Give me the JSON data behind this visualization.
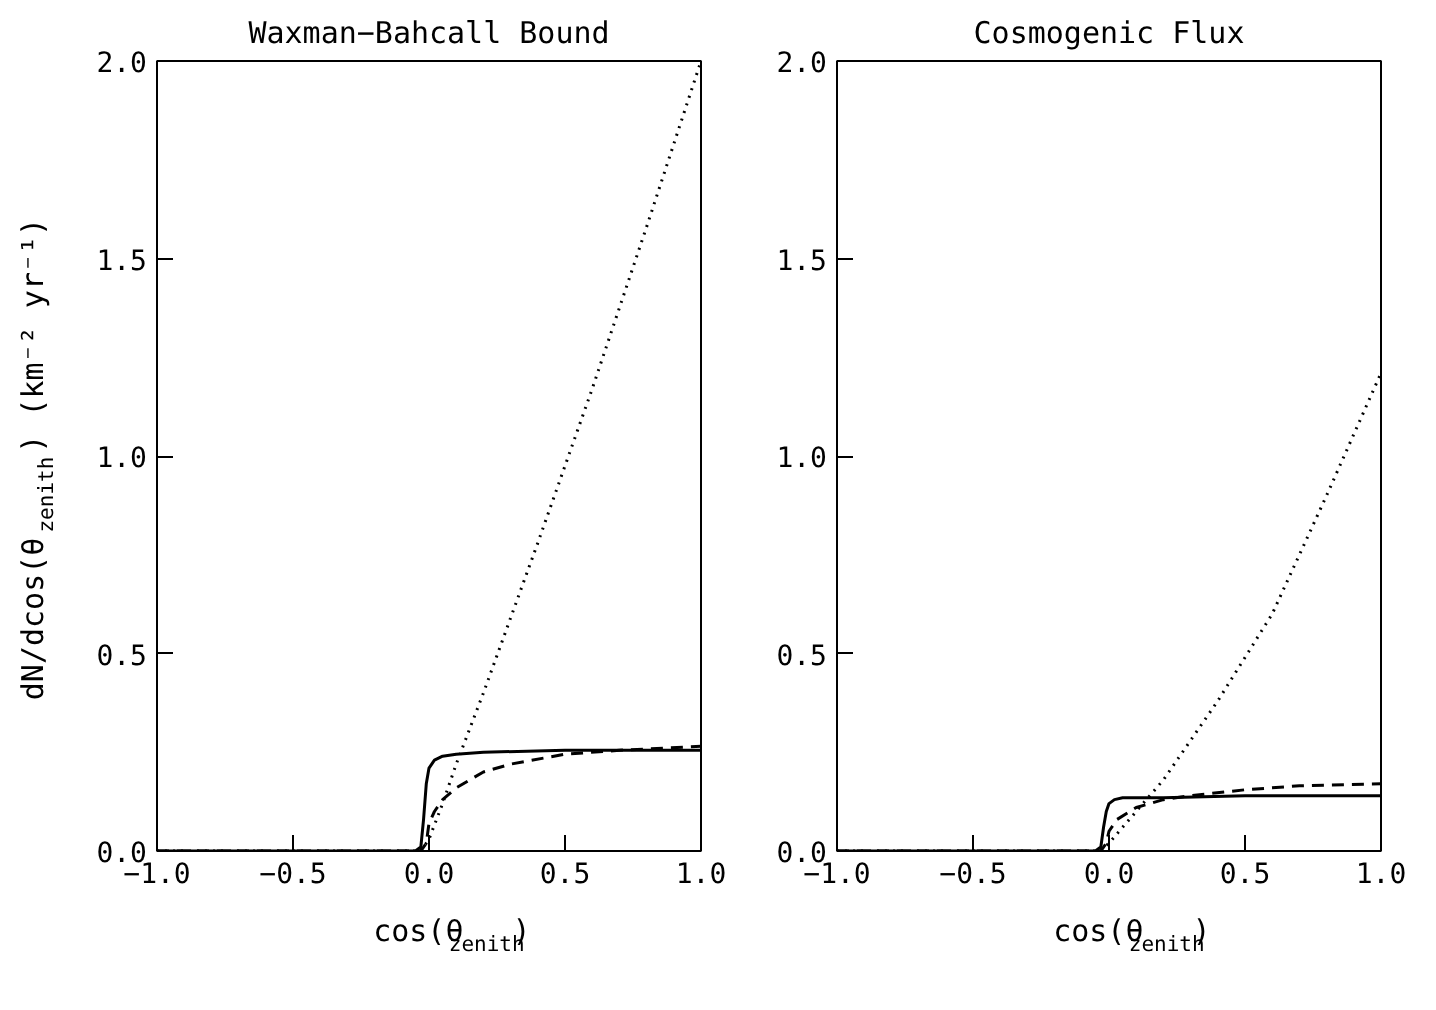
{
  "chart_data": [
    {
      "type": "line",
      "title": "Waxman−Bahcall Bound",
      "xlabel": "cos(θ$_{zenith}$)",
      "ylabel": "dN/dcos(θ$_{zenith}$) (km⁻² yr⁻¹)",
      "xlim": [
        -1,
        1
      ],
      "ylim": [
        0,
        2
      ],
      "xticks": [
        {
          "value": -1,
          "label": "−1.0"
        },
        {
          "value": -0.5,
          "label": "−0.5"
        },
        {
          "value": 0,
          "label": "0.0"
        },
        {
          "value": 0.5,
          "label": "0.5"
        },
        {
          "value": 1,
          "label": "1.0"
        }
      ],
      "yticks": [
        {
          "value": 0,
          "label": "0.0"
        },
        {
          "value": 0.5,
          "label": "0.5"
        },
        {
          "value": 1,
          "label": "1.0"
        },
        {
          "value": 1.5,
          "label": "1.5"
        },
        {
          "value": 2,
          "label": "2.0"
        }
      ],
      "grid": false,
      "series": [
        {
          "color": "#000000",
          "line_style": "solid",
          "x": [
            -1,
            -0.05,
            -0.03,
            -0.02,
            -0.01,
            0,
            0.02,
            0.05,
            0.1,
            0.2,
            0.5,
            1
          ],
          "values": [
            0,
            0,
            0.01,
            0.08,
            0.17,
            0.21,
            0.23,
            0.24,
            0.245,
            0.25,
            0.255,
            0.255
          ]
        },
        {
          "color": "#000000",
          "line_style": "dashed",
          "x": [
            -1,
            -0.03,
            -0.01,
            0,
            0.02,
            0.05,
            0.1,
            0.2,
            0.3,
            0.5,
            0.7,
            1
          ],
          "values": [
            0,
            0,
            0.02,
            0.07,
            0.1,
            0.13,
            0.16,
            0.2,
            0.22,
            0.245,
            0.255,
            0.265
          ]
        },
        {
          "color": "#000000",
          "line_style": "dotted",
          "x": [
            -1,
            -0.03,
            0,
            0.05,
            0.1,
            0.2,
            0.4,
            0.6,
            0.8,
            1
          ],
          "values": [
            0,
            0,
            0.03,
            0.12,
            0.22,
            0.4,
            0.78,
            1.17,
            1.58,
            2.0
          ]
        }
      ]
    },
    {
      "type": "line",
      "title": "Cosmogenic Flux",
      "xlabel": "cos(θ$_{zenith}$)",
      "xlim": [
        -1,
        1
      ],
      "ylim": [
        0,
        2
      ],
      "xticks": [
        {
          "value": -1,
          "label": "−1.0"
        },
        {
          "value": -0.5,
          "label": "−0.5"
        },
        {
          "value": 0,
          "label": "0.0"
        },
        {
          "value": 0.5,
          "label": "0.5"
        },
        {
          "value": 1,
          "label": "1.0"
        }
      ],
      "yticks": [
        {
          "value": 0,
          "label": "0.0"
        },
        {
          "value": 0.5,
          "label": "0.5"
        },
        {
          "value": 1,
          "label": "1.0"
        },
        {
          "value": 1.5,
          "label": "1.5"
        },
        {
          "value": 2,
          "label": "2.0"
        }
      ],
      "grid": false,
      "series": [
        {
          "color": "#000000",
          "line_style": "solid",
          "x": [
            -1,
            -0.05,
            -0.03,
            -0.02,
            -0.01,
            0,
            0.02,
            0.05,
            0.1,
            0.2,
            0.5,
            1
          ],
          "values": [
            0,
            0,
            0.01,
            0.06,
            0.1,
            0.12,
            0.13,
            0.135,
            0.135,
            0.135,
            0.14,
            0.14
          ]
        },
        {
          "color": "#000000",
          "line_style": "dashed",
          "x": [
            -1,
            -0.03,
            -0.01,
            0,
            0.03,
            0.1,
            0.2,
            0.3,
            0.5,
            0.7,
            1
          ],
          "values": [
            0,
            0,
            0.02,
            0.05,
            0.08,
            0.11,
            0.13,
            0.14,
            0.155,
            0.165,
            0.17
          ]
        },
        {
          "color": "#000000",
          "line_style": "dotted",
          "x": [
            -1,
            -0.03,
            0,
            0.05,
            0.1,
            0.2,
            0.4,
            0.6,
            0.8,
            1
          ],
          "values": [
            0,
            0,
            0.02,
            0.06,
            0.1,
            0.18,
            0.38,
            0.6,
            0.9,
            1.21
          ]
        }
      ]
    }
  ]
}
